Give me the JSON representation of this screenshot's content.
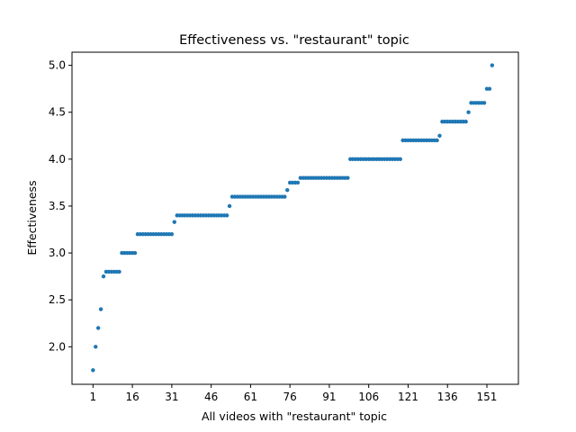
{
  "chart_data": {
    "type": "scatter",
    "title": "Effectiveness vs. \"restaurant\" topic",
    "xlabel": "All videos with \"restaurant\" topic",
    "ylabel": "Effectiveness",
    "xlim": [
      -7,
      163
    ],
    "ylim": [
      1.6,
      5.14
    ],
    "xticks": [
      1,
      16,
      31,
      46,
      61,
      76,
      91,
      106,
      121,
      136,
      151
    ],
    "xtick_labels": [
      "1",
      "16",
      "31",
      "46",
      "61",
      "76",
      "91",
      "106",
      "121",
      "136",
      "151"
    ],
    "yticks": [
      2.0,
      2.5,
      3.0,
      3.5,
      4.0,
      4.5,
      5.0
    ],
    "ytick_labels": [
      "2.0",
      "2.5",
      "3.0",
      "3.5",
      "4.0",
      "4.5",
      "5.0"
    ],
    "grid": false,
    "marker_color": "#1f77b4",
    "series": [
      {
        "segments": [
          {
            "y": 1.75,
            "count": 1
          },
          {
            "y": 2.0,
            "count": 1
          },
          {
            "y": 2.2,
            "count": 1
          },
          {
            "y": 2.4,
            "count": 1
          },
          {
            "y": 2.75,
            "count": 1
          },
          {
            "y": 2.8,
            "count": 6
          },
          {
            "y": 3.0,
            "count": 6
          },
          {
            "y": 3.2,
            "count": 14
          },
          {
            "y": 3.33,
            "count": 1
          },
          {
            "y": 3.4,
            "count": 20
          },
          {
            "y": 3.5,
            "count": 1
          },
          {
            "y": 3.6,
            "count": 21
          },
          {
            "y": 3.67,
            "count": 1
          },
          {
            "y": 3.75,
            "count": 4
          },
          {
            "y": 3.8,
            "count": 19
          },
          {
            "y": 4.0,
            "count": 20
          },
          {
            "y": 4.2,
            "count": 14
          },
          {
            "y": 4.25,
            "count": 1
          },
          {
            "y": 4.4,
            "count": 10
          },
          {
            "y": 4.5,
            "count": 1
          },
          {
            "y": 4.6,
            "count": 6
          },
          {
            "y": 4.75,
            "count": 2
          },
          {
            "y": 5.0,
            "count": 1
          }
        ]
      }
    ]
  }
}
